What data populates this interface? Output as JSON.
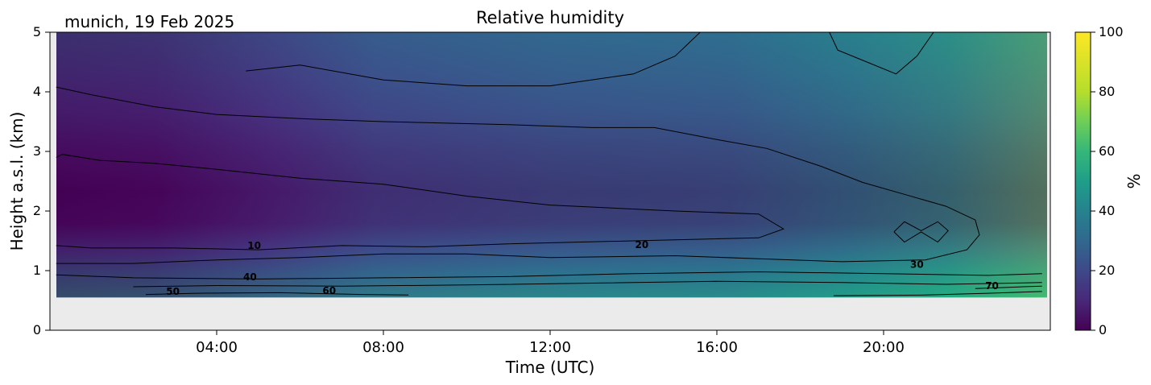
{
  "chart_data": {
    "type": "heatmap",
    "title": "Relative humidity",
    "subtitle": "munich, 19 Feb 2025",
    "xlabel": "Time (UTC)",
    "ylabel": "Height a.s.l. (km)",
    "x_range_hours": [
      0,
      24
    ],
    "ylim": [
      0,
      5
    ],
    "x_ticks": [
      {
        "hour": 4,
        "label": "04:00"
      },
      {
        "hour": 8,
        "label": "08:00"
      },
      {
        "hour": 12,
        "label": "12:00"
      },
      {
        "hour": 16,
        "label": "16:00"
      },
      {
        "hour": 20,
        "label": "20:00"
      }
    ],
    "y_ticks": [
      {
        "value": 0,
        "label": "0"
      },
      {
        "value": 1,
        "label": "1"
      },
      {
        "value": 2,
        "label": "2"
      },
      {
        "value": 3,
        "label": "3"
      },
      {
        "value": 4,
        "label": "4"
      },
      {
        "value": 5,
        "label": "5"
      }
    ],
    "data_bottom_km": 0.55,
    "no_data_color": "#ebebeb",
    "colorbar": {
      "label": "%",
      "range": [
        0,
        100
      ],
      "colormap": "viridis",
      "ticks": [
        {
          "value": 0,
          "label": "0"
        },
        {
          "value": 20,
          "label": "20"
        },
        {
          "value": 40,
          "label": "40"
        },
        {
          "value": 60,
          "label": "60"
        },
        {
          "value": 80,
          "label": "80"
        },
        {
          "value": 100,
          "label": "100"
        }
      ]
    },
    "contour_levels": [
      10,
      20,
      30,
      40,
      50,
      60,
      70
    ],
    "contour_labels": [
      {
        "text": "10",
        "hour": 4.9,
        "km": 1.42
      },
      {
        "text": "20",
        "hour": 14.2,
        "km": 1.43
      },
      {
        "text": "30",
        "hour": 20.8,
        "km": 1.1
      },
      {
        "text": "40",
        "hour": 4.8,
        "km": 0.89
      },
      {
        "text": "50",
        "hour": 2.95,
        "km": 0.65
      },
      {
        "text": "60",
        "hour": 6.7,
        "km": 0.66
      },
      {
        "text": "70",
        "hour": 22.6,
        "km": 0.74
      }
    ],
    "contours": [
      {
        "level": 10,
        "points": [
          [
            0.15,
            2.9
          ],
          [
            0.3,
            2.95
          ],
          [
            1.2,
            2.85
          ],
          [
            2.5,
            2.8
          ],
          [
            4,
            2.7
          ],
          [
            6,
            2.55
          ],
          [
            8,
            2.45
          ],
          [
            10,
            2.25
          ],
          [
            12,
            2.1
          ],
          [
            15,
            2.0
          ],
          [
            17,
            1.95
          ],
          [
            17.6,
            1.7
          ],
          [
            17,
            1.55
          ],
          [
            14,
            1.5
          ],
          [
            11,
            1.45
          ],
          [
            9,
            1.4
          ],
          [
            7,
            1.42
          ],
          [
            5,
            1.35
          ],
          [
            3,
            1.38
          ],
          [
            1,
            1.38
          ],
          [
            0.15,
            1.42
          ]
        ]
      },
      {
        "level": 20,
        "points": [
          [
            0.15,
            4.08
          ],
          [
            1,
            3.95
          ],
          [
            2.5,
            3.75
          ],
          [
            4,
            3.62
          ],
          [
            6,
            3.55
          ],
          [
            8,
            3.5
          ],
          [
            11,
            3.45
          ],
          [
            13,
            3.4
          ],
          [
            14.5,
            3.4
          ],
          [
            16,
            3.2
          ],
          [
            17.2,
            3.05
          ],
          [
            18.5,
            2.75
          ],
          [
            19.5,
            2.48
          ],
          [
            20.5,
            2.28
          ],
          [
            21.5,
            2.08
          ],
          [
            22.2,
            1.85
          ],
          [
            22.3,
            1.6
          ],
          [
            22,
            1.35
          ],
          [
            21,
            1.18
          ],
          [
            19,
            1.15
          ],
          [
            17,
            1.2
          ],
          [
            15,
            1.25
          ],
          [
            12,
            1.22
          ],
          [
            10,
            1.28
          ],
          [
            8,
            1.28
          ],
          [
            6,
            1.22
          ],
          [
            4,
            1.18
          ],
          [
            2,
            1.12
          ],
          [
            0.15,
            1.12
          ]
        ]
      },
      {
        "level": 30,
        "points": [
          [
            0.15,
            0.93
          ],
          [
            2,
            0.88
          ],
          [
            5,
            0.86
          ],
          [
            8,
            0.88
          ],
          [
            11,
            0.9
          ],
          [
            14,
            0.95
          ],
          [
            17,
            0.98
          ],
          [
            20,
            0.95
          ],
          [
            22.5,
            0.92
          ],
          [
            23.8,
            0.95
          ]
        ]
      },
      {
        "level": 40,
        "points": [
          [
            2,
            0.73
          ],
          [
            4,
            0.75
          ],
          [
            7,
            0.74
          ],
          [
            10,
            0.76
          ],
          [
            13,
            0.79
          ],
          [
            16,
            0.82
          ],
          [
            19,
            0.8
          ],
          [
            21.5,
            0.77
          ],
          [
            23.8,
            0.8
          ]
        ]
      },
      {
        "level": 50,
        "points": [
          [
            2.3,
            0.6
          ],
          [
            3.5,
            0.62
          ],
          [
            5.5,
            0.63
          ],
          [
            7.5,
            0.6
          ],
          [
            8.6,
            0.59
          ]
        ]
      },
      {
        "level": 60,
        "points": [
          [
            18.8,
            0.58
          ],
          [
            21,
            0.59
          ],
          [
            22.5,
            0.62
          ],
          [
            23.8,
            0.65
          ]
        ]
      },
      {
        "level": 70,
        "points": [
          [
            22.2,
            0.7
          ],
          [
            23,
            0.72
          ],
          [
            23.8,
            0.74
          ]
        ]
      },
      {
        "level": 30,
        "points": [
          [
            4.7,
            4.35
          ],
          [
            6,
            4.45
          ],
          [
            8,
            4.2
          ],
          [
            10,
            4.1
          ],
          [
            12,
            4.1
          ],
          [
            14,
            4.3
          ],
          [
            15,
            4.6
          ],
          [
            15.6,
            5.0
          ]
        ]
      },
      {
        "level": 40,
        "points": [
          [
            18.7,
            5.0
          ],
          [
            18.9,
            4.7
          ],
          [
            19.6,
            4.5
          ],
          [
            20.3,
            4.3
          ],
          [
            20.8,
            4.6
          ],
          [
            21.2,
            5.0
          ]
        ]
      },
      {
        "level": 30,
        "points": [
          [
            20.25,
            1.65
          ],
          [
            20.5,
            1.82
          ],
          [
            20.9,
            1.67
          ],
          [
            21.3,
            1.82
          ],
          [
            21.55,
            1.67
          ],
          [
            21.3,
            1.48
          ],
          [
            20.9,
            1.65
          ],
          [
            20.5,
            1.48
          ],
          [
            20.25,
            1.65
          ]
        ]
      }
    ]
  }
}
